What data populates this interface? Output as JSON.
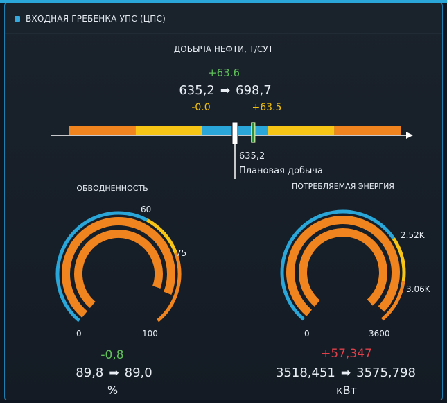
{
  "header": {
    "title": "ВХОДНАЯ ГРЕБЕНКА УПС (ЦПС)",
    "marker_color": "#35a9de"
  },
  "oil": {
    "title": "ДОБЫЧА НЕФТИ, Т/СУТ",
    "delta": "+63.6",
    "from": "635,2",
    "to": "698,7",
    "delta_left": "-0.0",
    "delta_right": "+63.5",
    "plan_value": "635,2",
    "plan_label": "Плановая добыча",
    "bar_segments": [
      {
        "color": "#f0851f",
        "from": 0.0,
        "to": 0.2
      },
      {
        "color": "#f6c515",
        "from": 0.2,
        "to": 0.4
      },
      {
        "color": "#2aa6d8",
        "from": 0.4,
        "to": 0.6
      },
      {
        "color": "#f6c515",
        "from": 0.6,
        "to": 0.8
      },
      {
        "color": "#f0851f",
        "from": 0.8,
        "to": 1.0
      }
    ],
    "plan_marker": 0.5,
    "current_marker": 0.555
  },
  "water_cut": {
    "title": "ОБВОДНЕННОСТЬ",
    "tick_min": "0",
    "tick_60": "60",
    "tick_75": "75",
    "tick_max": "100",
    "delta": "-0,8",
    "from": "89,8",
    "to": "89,0",
    "unit": "%",
    "value_from": 89.8,
    "value_to": 89.0,
    "scale_min": 0,
    "scale_max": 100,
    "threshold_warn": 60,
    "threshold_alarm": 75
  },
  "energy": {
    "title": "ПОТРЕБЛЯЕМАЯ ЭНЕРГИЯ",
    "tick_min": "0",
    "tick_warn": "2.52K",
    "tick_alarm": "3.06K",
    "tick_max": "3600",
    "delta": "+57,347",
    "from": "3518,451",
    "to": "3575,798",
    "unit": "кВт",
    "value_from": 3518.451,
    "value_to": 3575.798,
    "scale_min": 0,
    "scale_max": 3600,
    "threshold_warn": 2520,
    "threshold_alarm": 3060
  },
  "colors": {
    "blue": "#2aa6d8",
    "yellow": "#f6c515",
    "orange": "#f0851f",
    "green": "#5fc05a",
    "red": "#e0404a",
    "axis": "#ffffff"
  }
}
